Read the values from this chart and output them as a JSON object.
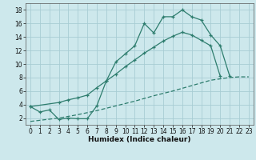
{
  "xlabel": "Humidex (Indice chaleur)",
  "background_color": "#cde8ec",
  "grid_color": "#a8cdd4",
  "line_color": "#2e7d6e",
  "xlim": [
    -0.5,
    23.5
  ],
  "ylim": [
    1.0,
    19.0
  ],
  "xticks": [
    0,
    1,
    2,
    3,
    4,
    5,
    6,
    7,
    8,
    9,
    10,
    11,
    12,
    13,
    14,
    15,
    16,
    17,
    18,
    19,
    20,
    21,
    22,
    23
  ],
  "yticks": [
    2,
    4,
    6,
    8,
    10,
    12,
    14,
    16,
    18
  ],
  "curve1_x": [
    0,
    1,
    2,
    3,
    4,
    5,
    6,
    7,
    8,
    9,
    10,
    11,
    12,
    13,
    14,
    15,
    16,
    17,
    18,
    19,
    20,
    21,
    22
  ],
  "curve1_y": [
    3.7,
    2.9,
    3.2,
    1.8,
    2.0,
    1.9,
    1.9,
    3.8,
    7.5,
    10.3,
    11.5,
    12.7,
    16.0,
    14.6,
    17.0,
    17.0,
    18.0,
    17.0,
    16.5,
    14.3,
    12.7,
    8.2,
    null
  ],
  "curve2_x": [
    0,
    3,
    4,
    5,
    6,
    7,
    8,
    9,
    10,
    11,
    12,
    13,
    14,
    15,
    16,
    17,
    18,
    19,
    20,
    21,
    22,
    23
  ],
  "curve2_y": [
    3.7,
    4.3,
    4.7,
    5.0,
    5.4,
    6.5,
    7.5,
    8.5,
    9.6,
    10.6,
    11.6,
    12.5,
    13.4,
    14.1,
    14.7,
    14.3,
    13.5,
    12.7,
    8.2,
    null,
    null,
    null
  ],
  "curve3_x": [
    0,
    3,
    5,
    7,
    9,
    11,
    13,
    15,
    17,
    19,
    21,
    22,
    23
  ],
  "curve3_y": [
    1.5,
    2.0,
    2.5,
    3.1,
    3.8,
    4.5,
    5.3,
    6.0,
    6.8,
    7.6,
    8.0,
    8.1,
    8.1
  ]
}
